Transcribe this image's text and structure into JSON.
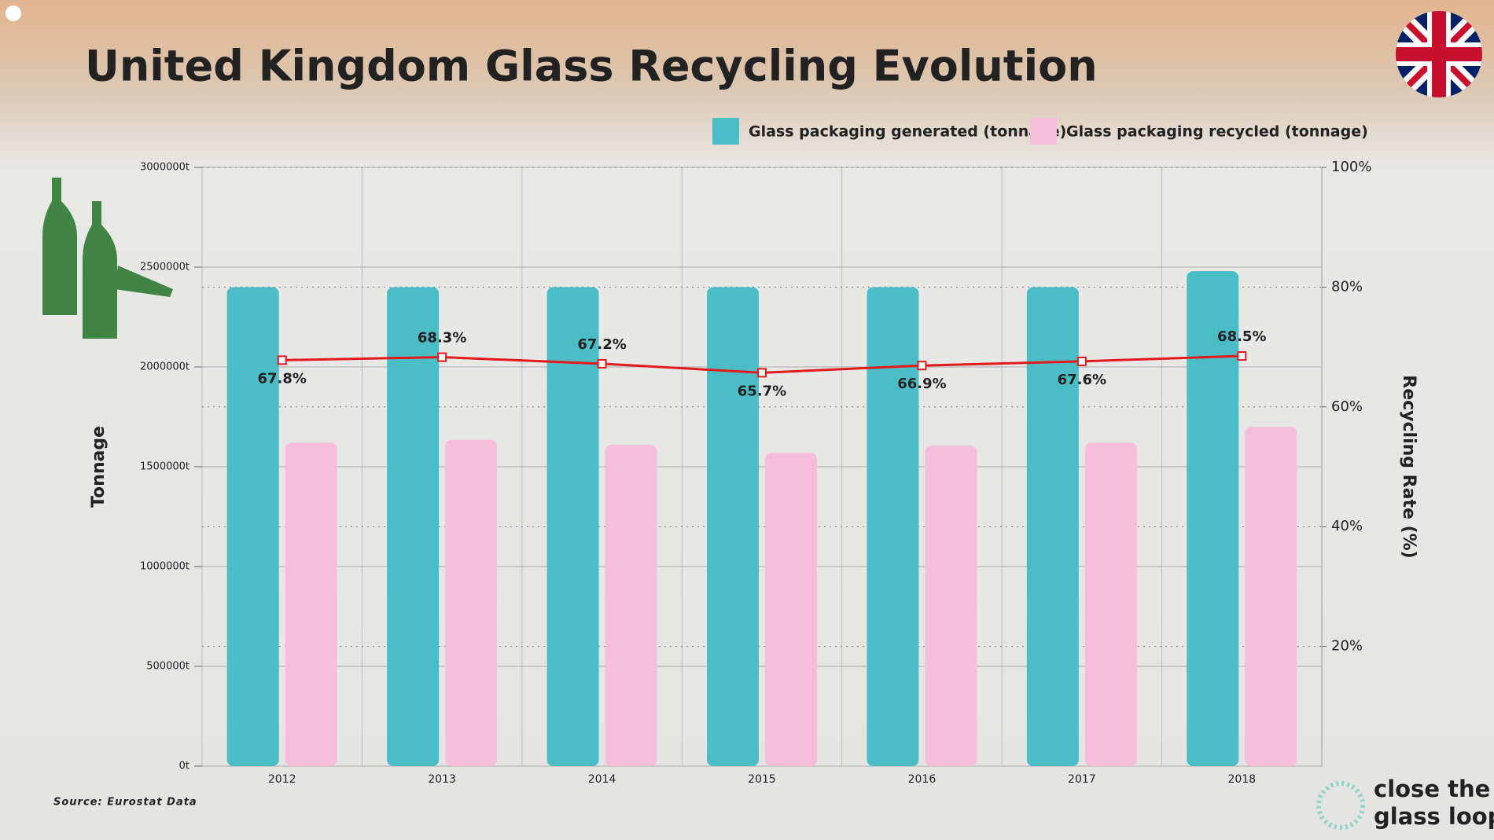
{
  "chart_data": {
    "type": "bar",
    "title": "United Kingdom Glass Recycling Evolution",
    "categories": [
      "2012",
      "2013",
      "2014",
      "2015",
      "2016",
      "2017",
      "2018"
    ],
    "series": [
      {
        "name": "Glass packaging generated (tonnage)",
        "color": "#4bbdc6",
        "values": [
          2400000,
          2400000,
          2400000,
          2400000,
          2400000,
          2400000,
          2480000
        ]
      },
      {
        "name": "Glass packaging recycled (tonnage)",
        "color": "#f6bedb",
        "values": [
          1620000,
          1635000,
          1610000,
          1570000,
          1605000,
          1620000,
          1700000
        ]
      },
      {
        "type": "line",
        "axis": "y2",
        "color": "#e3191b",
        "values": [
          67.8,
          68.3,
          67.2,
          65.7,
          66.9,
          67.6,
          68.5
        ],
        "value_labels": [
          "67.8%",
          "68.3%",
          "67.2%",
          "65.7%",
          "66.9%",
          "67.6%",
          "68.5%"
        ]
      }
    ],
    "ylabel": "Tonnage",
    "y2label": "Recycling Rate (%)",
    "ylim": [
      0,
      3000000
    ],
    "yticks": [
      {
        "value": 0,
        "label": "0t"
      },
      {
        "value": 500000,
        "label": "500000t"
      },
      {
        "value": 1000000,
        "label": "1000000t"
      },
      {
        "value": 1500000,
        "label": "1500000t"
      },
      {
        "value": 2000000,
        "label": "2000000t"
      },
      {
        "value": 2500000,
        "label": "2500000t"
      },
      {
        "value": 3000000,
        "label": "3000000t"
      }
    ],
    "y2lim": [
      0,
      100
    ],
    "y2ticks": [
      {
        "value": 20,
        "label": "20%"
      },
      {
        "value": 40,
        "label": "40%"
      },
      {
        "value": 60,
        "label": "60%"
      },
      {
        "value": 80,
        "label": "80%"
      },
      {
        "value": 100,
        "label": "100%"
      }
    ],
    "grid": true,
    "legend": "top-right",
    "source": "Source: Eurostat Data",
    "brand": [
      "close the",
      "glass loop"
    ]
  }
}
